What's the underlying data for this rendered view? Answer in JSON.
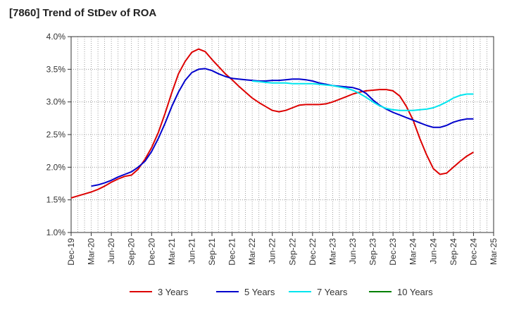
{
  "title": "[7860]  Trend of StDev of ROA",
  "chart_data": {
    "type": "line",
    "title": "[7860]  Trend of StDev of ROA",
    "xlabel": "",
    "ylabel": "",
    "ylim": [
      1.0,
      4.0
    ],
    "y_ticks": [
      "1.0%",
      "1.5%",
      "2.0%",
      "2.5%",
      "3.0%",
      "3.5%",
      "4.0%"
    ],
    "y_tick_values": [
      1.0,
      1.5,
      2.0,
      2.5,
      3.0,
      3.5,
      4.0
    ],
    "x_ticks": [
      "Dec-19",
      "Mar-20",
      "Jun-20",
      "Sep-20",
      "Dec-20",
      "Mar-21",
      "Jun-21",
      "Sep-21",
      "Dec-21",
      "Mar-22",
      "Jun-22",
      "Sep-22",
      "Dec-22",
      "Mar-23",
      "Jun-23",
      "Sep-23",
      "Dec-23",
      "Mar-24",
      "Jun-24",
      "Sep-24",
      "Dec-24",
      "Mar-25"
    ],
    "x_range": [
      "Dec-19",
      "Mar-25"
    ],
    "grid": true,
    "legend_position": "bottom",
    "series": [
      {
        "name": "3 Years",
        "color": "#dd0000",
        "x": [
          "Dec-19",
          "Jan-20",
          "Feb-20",
          "Mar-20",
          "Apr-20",
          "May-20",
          "Jun-20",
          "Jul-20",
          "Aug-20",
          "Sep-20",
          "Oct-20",
          "Nov-20",
          "Dec-20",
          "Jan-21",
          "Feb-21",
          "Mar-21",
          "Apr-21",
          "May-21",
          "Jun-21",
          "Jul-21",
          "Aug-21",
          "Sep-21",
          "Oct-21",
          "Nov-21",
          "Dec-21",
          "Jan-22",
          "Feb-22",
          "Mar-22",
          "Apr-22",
          "May-22",
          "Jun-22",
          "Jul-22",
          "Aug-22",
          "Sep-22",
          "Oct-22",
          "Nov-22",
          "Dec-22",
          "Jan-23",
          "Feb-23",
          "Mar-23",
          "Apr-23",
          "May-23",
          "Jun-23",
          "Jul-23",
          "Aug-23",
          "Sep-23",
          "Oct-23",
          "Nov-23",
          "Dec-23",
          "Jan-24",
          "Feb-24",
          "Mar-24",
          "Apr-24",
          "May-24",
          "Jun-24",
          "Jul-24",
          "Aug-24",
          "Sep-24",
          "Oct-24",
          "Nov-24",
          "Dec-24"
        ],
        "values": [
          1.53,
          1.56,
          1.59,
          1.62,
          1.66,
          1.71,
          1.77,
          1.82,
          1.86,
          1.88,
          1.97,
          2.12,
          2.3,
          2.53,
          2.82,
          3.14,
          3.43,
          3.62,
          3.76,
          3.81,
          3.77,
          3.65,
          3.54,
          3.43,
          3.34,
          3.24,
          3.15,
          3.06,
          2.99,
          2.93,
          2.87,
          2.85,
          2.87,
          2.91,
          2.95,
          2.96,
          2.96,
          2.96,
          2.97,
          3.0,
          3.04,
          3.08,
          3.12,
          3.15,
          3.17,
          3.18,
          3.19,
          3.19,
          3.17,
          3.09,
          2.93,
          2.72,
          2.44,
          2.19,
          1.98,
          1.89,
          1.91,
          2.0,
          2.09,
          2.17,
          2.23
        ]
      },
      {
        "name": "5 Years",
        "color": "#0000cc",
        "x": [
          "Mar-20",
          "Apr-20",
          "May-20",
          "Jun-20",
          "Jul-20",
          "Aug-20",
          "Sep-20",
          "Oct-20",
          "Nov-20",
          "Dec-20",
          "Jan-21",
          "Feb-21",
          "Mar-21",
          "Apr-21",
          "May-21",
          "Jun-21",
          "Jul-21",
          "Aug-21",
          "Sep-21",
          "Oct-21",
          "Nov-21",
          "Dec-21",
          "Jan-22",
          "Feb-22",
          "Mar-22",
          "Apr-22",
          "May-22",
          "Jun-22",
          "Jul-22",
          "Aug-22",
          "Sep-22",
          "Oct-22",
          "Nov-22",
          "Dec-22",
          "Jan-23",
          "Feb-23",
          "Mar-23",
          "Apr-23",
          "May-23",
          "Jun-23",
          "Jul-23",
          "Aug-23",
          "Sep-23",
          "Oct-23",
          "Nov-23",
          "Dec-23",
          "Jan-24",
          "Feb-24",
          "Mar-24",
          "Apr-24",
          "May-24",
          "Jun-24",
          "Jul-24",
          "Aug-24",
          "Sep-24",
          "Oct-24",
          "Nov-24",
          "Dec-24"
        ],
        "values": [
          1.71,
          1.73,
          1.76,
          1.8,
          1.85,
          1.89,
          1.93,
          2.0,
          2.09,
          2.24,
          2.44,
          2.67,
          2.93,
          3.15,
          3.33,
          3.45,
          3.5,
          3.51,
          3.48,
          3.43,
          3.39,
          3.36,
          3.35,
          3.34,
          3.33,
          3.32,
          3.32,
          3.33,
          3.33,
          3.34,
          3.35,
          3.35,
          3.34,
          3.32,
          3.29,
          3.27,
          3.25,
          3.24,
          3.23,
          3.22,
          3.19,
          3.13,
          3.03,
          2.95,
          2.89,
          2.84,
          2.8,
          2.76,
          2.72,
          2.68,
          2.64,
          2.61,
          2.61,
          2.64,
          2.69,
          2.72,
          2.74,
          2.74
        ]
      },
      {
        "name": "7 Years",
        "color": "#00e5ee",
        "x": [
          "Mar-22",
          "Apr-22",
          "May-22",
          "Jun-22",
          "Jul-22",
          "Aug-22",
          "Sep-22",
          "Oct-22",
          "Nov-22",
          "Dec-22",
          "Jan-23",
          "Feb-23",
          "Mar-23",
          "Apr-23",
          "May-23",
          "Jun-23",
          "Jul-23",
          "Aug-23",
          "Sep-23",
          "Oct-23",
          "Nov-23",
          "Dec-23",
          "Jan-24",
          "Feb-24",
          "Mar-24",
          "Apr-24",
          "May-24",
          "Jun-24",
          "Jul-24",
          "Aug-24",
          "Sep-24",
          "Oct-24",
          "Nov-24",
          "Dec-24"
        ],
        "values": [
          3.32,
          3.31,
          3.3,
          3.29,
          3.29,
          3.29,
          3.28,
          3.28,
          3.28,
          3.28,
          3.27,
          3.26,
          3.25,
          3.23,
          3.21,
          3.18,
          3.13,
          3.07,
          3.0,
          2.94,
          2.9,
          2.88,
          2.87,
          2.87,
          2.87,
          2.88,
          2.89,
          2.91,
          2.95,
          3.0,
          3.06,
          3.1,
          3.12,
          3.12
        ]
      },
      {
        "name": "10 Years",
        "color": "#008000",
        "x": [],
        "values": []
      }
    ]
  }
}
